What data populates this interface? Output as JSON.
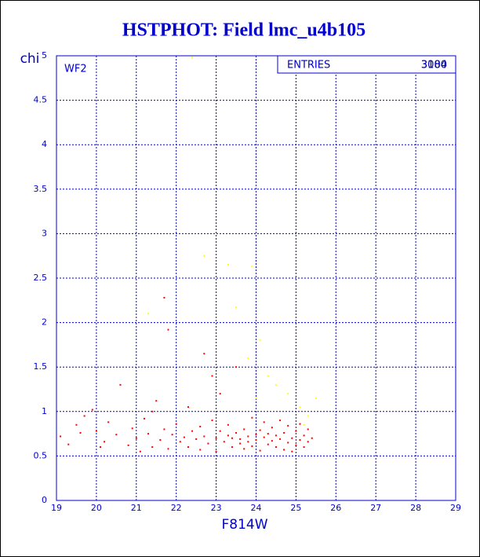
{
  "chart_data": {
    "type": "scatter",
    "title": "HSTPHOT: Field lmc_u4b105",
    "x_label": "F814W",
    "y_label": "chi",
    "annotation": "WF2",
    "stats": {
      "label": "ENTRIES",
      "values": [
        "3000",
        "3184"
      ]
    },
    "xlim": [
      19,
      29
    ],
    "ylim": [
      0,
      5
    ],
    "xticks": [
      19,
      20,
      21,
      22,
      23,
      24,
      25,
      26,
      27,
      28,
      29
    ],
    "yticks": [
      0,
      0.5,
      1,
      1.5,
      2,
      2.5,
      3,
      3.5,
      4,
      4.5,
      5
    ],
    "grid": true,
    "series": [
      {
        "color": "#ff0000",
        "x": [
          19.1,
          19.3,
          19.5,
          19.7,
          19.9,
          20.0,
          20.2,
          20.3,
          20.5,
          20.6,
          20.8,
          20.9,
          21.0,
          21.1,
          21.2,
          21.3,
          21.4,
          21.5,
          21.6,
          21.7,
          21.8,
          21.8,
          21.9,
          22.0,
          22.1,
          22.2,
          22.3,
          22.3,
          22.4,
          22.5,
          22.6,
          22.6,
          22.7,
          22.7,
          22.8,
          22.9,
          23.0,
          23.0,
          23.1,
          23.1,
          23.2,
          23.3,
          23.3,
          23.4,
          23.4,
          23.5,
          23.5,
          23.6,
          23.6,
          23.7,
          23.7,
          23.8,
          23.8,
          23.9,
          23.9,
          24.0,
          24.0,
          24.1,
          24.1,
          24.2,
          24.2,
          24.3,
          24.3,
          24.4,
          24.4,
          24.5,
          24.5,
          24.6,
          24.6,
          24.7,
          24.7,
          24.8,
          24.8,
          24.9,
          24.9,
          25.0,
          25.0,
          25.1,
          25.1,
          25.2,
          25.2,
          25.3,
          25.3,
          25.4,
          22.9,
          21.4,
          20.1,
          19.6,
          21.7
        ],
        "y": [
          0.72,
          0.63,
          0.85,
          0.95,
          1.02,
          0.78,
          0.66,
          0.88,
          0.74,
          1.3,
          0.62,
          0.81,
          0.7,
          0.55,
          0.92,
          0.75,
          0.6,
          1.12,
          0.68,
          0.8,
          1.92,
          0.58,
          0.74,
          0.86,
          0.66,
          0.71,
          1.05,
          0.6,
          0.78,
          0.69,
          0.83,
          0.57,
          1.65,
          0.72,
          0.64,
          0.9,
          0.7,
          0.55,
          0.78,
          1.2,
          0.66,
          0.73,
          0.85,
          0.6,
          0.7,
          0.76,
          1.5,
          0.64,
          0.69,
          0.8,
          0.58,
          0.72,
          0.66,
          0.93,
          0.61,
          0.74,
          0.68,
          0.79,
          0.56,
          0.71,
          0.88,
          0.63,
          0.75,
          0.67,
          0.82,
          0.6,
          0.73,
          0.69,
          0.9,
          0.57,
          0.76,
          0.65,
          0.84,
          0.7,
          0.55,
          0.78,
          0.62,
          0.86,
          0.68,
          0.73,
          0.6,
          0.8,
          0.66,
          0.7,
          1.4,
          1.0,
          0.6,
          0.76,
          2.28
        ]
      },
      {
        "color": "#ffff00",
        "x": [
          22.7,
          23.3,
          23.9,
          23.5,
          21.3,
          24.1,
          23.8,
          24.5,
          24.8,
          25.1,
          25.3,
          24.3,
          25.5,
          25.2,
          24.0,
          22.4
        ],
        "y": [
          2.75,
          2.65,
          2.63,
          2.17,
          2.1,
          1.8,
          1.6,
          1.3,
          1.2,
          1.05,
          0.95,
          1.4,
          1.15,
          0.85,
          1.15,
          4.98
        ]
      }
    ]
  }
}
